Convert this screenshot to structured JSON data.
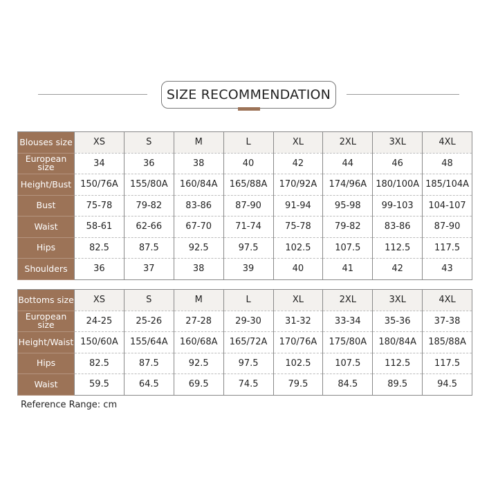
{
  "title": "SIZE RECOMMENDATION",
  "colors": {
    "accent": "#9c7357",
    "header_bg": "#f3f1ee"
  },
  "blouses": {
    "rows": [
      {
        "label": "Blouses size",
        "values": [
          "XS",
          "S",
          "M",
          "L",
          "XL",
          "2XL",
          "3XL",
          "4XL"
        ]
      },
      {
        "label": "European size",
        "values": [
          "34",
          "36",
          "38",
          "40",
          "42",
          "44",
          "46",
          "48"
        ]
      },
      {
        "label": "Height/Bust",
        "values": [
          "150/76A",
          "155/80A",
          "160/84A",
          "165/88A",
          "170/92A",
          "174/96A",
          "180/100A",
          "185/104A"
        ]
      },
      {
        "label": "Bust",
        "values": [
          "75-78",
          "79-82",
          "83-86",
          "87-90",
          "91-94",
          "95-98",
          "99-103",
          "104-107"
        ]
      },
      {
        "label": "Waist",
        "values": [
          "58-61",
          "62-66",
          "67-70",
          "71-74",
          "75-78",
          "79-82",
          "83-86",
          "87-90"
        ]
      },
      {
        "label": "Hips",
        "values": [
          "82.5",
          "87.5",
          "92.5",
          "97.5",
          "102.5",
          "107.5",
          "112.5",
          "117.5"
        ]
      },
      {
        "label": "Shoulders",
        "values": [
          "36",
          "37",
          "38",
          "39",
          "40",
          "41",
          "42",
          "43"
        ]
      }
    ]
  },
  "bottoms": {
    "rows": [
      {
        "label": "Bottoms size",
        "values": [
          "XS",
          "S",
          "M",
          "L",
          "XL",
          "2XL",
          "3XL",
          "4XL"
        ]
      },
      {
        "label": "European size",
        "values": [
          "24-25",
          "25-26",
          "27-28",
          "29-30",
          "31-32",
          "33-34",
          "35-36",
          "37-38"
        ]
      },
      {
        "label": "Height/Waist",
        "values": [
          "150/60A",
          "155/64A",
          "160/68A",
          "165/72A",
          "170/76A",
          "175/80A",
          "180/84A",
          "185/88A"
        ]
      },
      {
        "label": "Hips",
        "values": [
          "82.5",
          "87.5",
          "92.5",
          "97.5",
          "102.5",
          "107.5",
          "112.5",
          "117.5"
        ]
      },
      {
        "label": "Waist",
        "values": [
          "59.5",
          "64.5",
          "69.5",
          "74.5",
          "79.5",
          "84.5",
          "89.5",
          "94.5"
        ]
      }
    ]
  },
  "reference": "Reference Range: cm"
}
